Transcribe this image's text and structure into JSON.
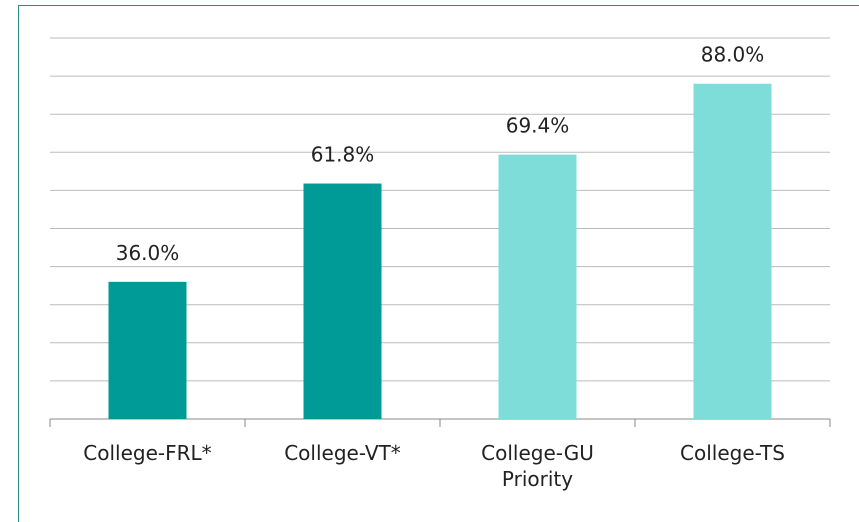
{
  "chart_data": {
    "type": "bar",
    "categories": [
      "College-FRL*",
      "College-VT*",
      "College-GU Priority",
      "College-TS"
    ],
    "values": [
      36.0,
      61.8,
      69.4,
      88.0
    ],
    "value_labels": [
      "36.0%",
      "61.8%",
      "69.4%",
      "88.0%"
    ],
    "colors": [
      "#009b96",
      "#009b96",
      "#7fddd9",
      "#7fddd9"
    ],
    "ylim": [
      0,
      100
    ],
    "yticks": [
      0,
      10,
      20,
      30,
      40,
      50,
      60,
      70,
      80,
      90,
      100
    ],
    "grid": true
  }
}
